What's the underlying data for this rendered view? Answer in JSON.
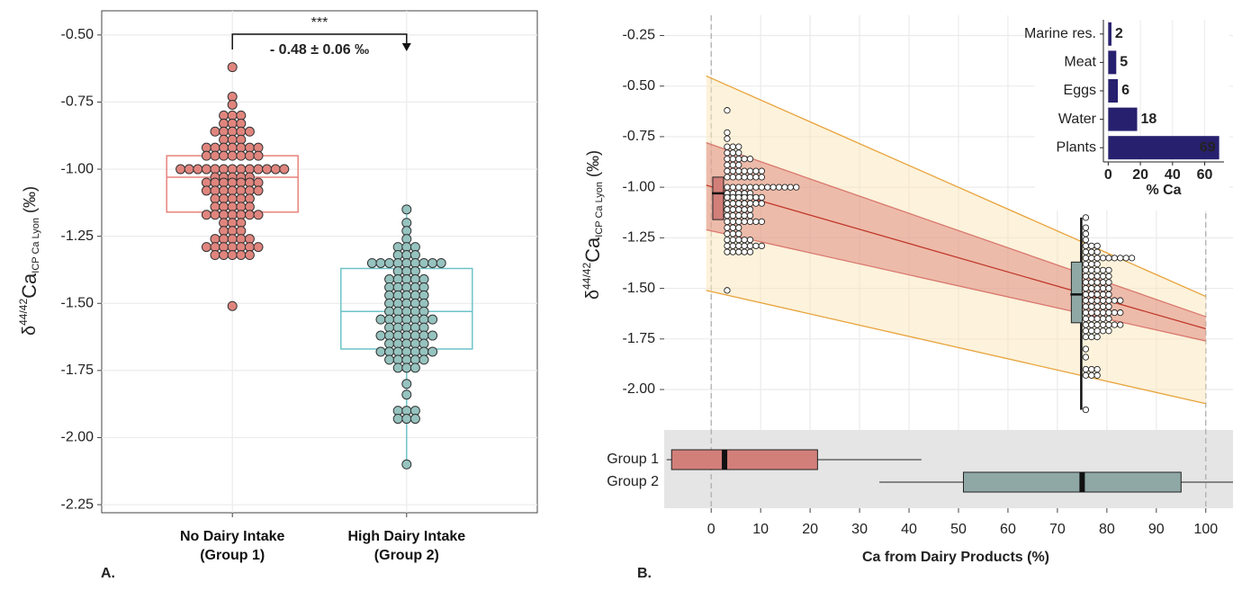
{
  "chart_data": [
    {
      "type": "box",
      "panel_label": "A.",
      "ylabel": [
        "δ",
        "44/42",
        "Ca",
        "ICP Ca Lyon",
        "(‰)"
      ],
      "categories": [
        "No Dairy Intake (Group 1)",
        "High Dairy Intake (Group 2)"
      ],
      "annotation": {
        "stars": "***",
        "text": "- 0.48 ± 0.06 ‰"
      },
      "ylim": [
        -2.28,
        -0.41
      ],
      "yticks": [
        {
          "value": -0.5,
          "label": "-0.50"
        },
        -0.75,
        {
          "value": -1,
          "label": "-1.00"
        },
        -1.25,
        {
          "value": -1.5,
          "label": "-1.50"
        },
        -1.75,
        {
          "value": -2,
          "label": "-2.00"
        },
        -2.25
      ],
      "grid": true,
      "series": [
        {
          "color": "#e0857e",
          "box_color": "#e8837c",
          "box": {
            "q1": -1.16,
            "median": -1.03,
            "q3": -0.95
          },
          "values": [
            -0.62,
            -0.73,
            -0.76,
            -0.8,
            -0.8,
            -0.8,
            -0.83,
            -0.83,
            -0.83,
            -0.86,
            -0.86,
            -0.86,
            -0.86,
            -0.86,
            -0.89,
            -0.89,
            -0.89,
            -0.92,
            -0.92,
            -0.92,
            -0.92,
            -0.92,
            -0.92,
            -0.92,
            -0.95,
            -0.95,
            -0.95,
            -0.95,
            -0.95,
            -0.95,
            -0.95,
            -1,
            -1,
            -1,
            -1,
            -1,
            -1,
            -1,
            -1,
            -1,
            -1,
            -1,
            -1,
            -1,
            -1.03,
            -1.03,
            -1.03,
            -1.03,
            -1.03,
            -1.05,
            -1.05,
            -1.05,
            -1.05,
            -1.05,
            -1.05,
            -1.05,
            -1.08,
            -1.08,
            -1.08,
            -1.08,
            -1.08,
            -1.08,
            -1.08,
            -1.11,
            -1.11,
            -1.11,
            -1.11,
            -1.11,
            -1.14,
            -1.14,
            -1.14,
            -1.14,
            -1.14,
            -1.17,
            -1.17,
            -1.17,
            -1.17,
            -1.17,
            -1.17,
            -1.17,
            -1.2,
            -1.2,
            -1.2,
            -1.23,
            -1.23,
            -1.23,
            -1.26,
            -1.26,
            -1.26,
            -1.26,
            -1.26,
            -1.29,
            -1.29,
            -1.29,
            -1.29,
            -1.29,
            -1.29,
            -1.29,
            -1.32,
            -1.32,
            -1.32,
            -1.32,
            -1.32,
            -1.51
          ]
        },
        {
          "color": "#96c3bf",
          "box_color": "#6ec3c8",
          "box": {
            "q1": -1.67,
            "median": -1.53,
            "q3": -1.37,
            "whiskers": [
              -2.1,
              -1.15
            ]
          },
          "values": [
            -1.15,
            -1.2,
            -1.23,
            -1.26,
            -1.29,
            -1.29,
            -1.29,
            -1.32,
            -1.32,
            -1.32,
            -1.35,
            -1.35,
            -1.35,
            -1.35,
            -1.35,
            -1.35,
            -1.35,
            -1.35,
            -1.35,
            -1.38,
            -1.38,
            -1.38,
            -1.41,
            -1.41,
            -1.41,
            -1.41,
            -1.41,
            -1.44,
            -1.44,
            -1.44,
            -1.44,
            -1.44,
            -1.47,
            -1.47,
            -1.47,
            -1.47,
            -1.47,
            -1.5,
            -1.5,
            -1.5,
            -1.5,
            -1.5,
            -1.53,
            -1.53,
            -1.53,
            -1.53,
            -1.53,
            -1.56,
            -1.56,
            -1.56,
            -1.56,
            -1.56,
            -1.56,
            -1.56,
            -1.59,
            -1.59,
            -1.59,
            -1.59,
            -1.59,
            -1.62,
            -1.62,
            -1.62,
            -1.62,
            -1.62,
            -1.62,
            -1.62,
            -1.65,
            -1.65,
            -1.65,
            -1.65,
            -1.65,
            -1.68,
            -1.68,
            -1.68,
            -1.68,
            -1.68,
            -1.68,
            -1.68,
            -1.71,
            -1.71,
            -1.71,
            -1.71,
            -1.71,
            -1.74,
            -1.74,
            -1.74,
            -1.8,
            -1.84,
            -1.9,
            -1.9,
            -1.9,
            -1.93,
            -1.93,
            -1.93,
            -2.1
          ]
        }
      ]
    },
    {
      "type": "regression",
      "panel_label": "B.",
      "ylabel": [
        "δ",
        "44/42",
        "Ca",
        "ICP Ca Lyon",
        "(‰)"
      ],
      "xlabel": "Ca from Dairy Products (%)",
      "xlim": [
        -9.5,
        105.5
      ],
      "xticks": [
        0,
        10,
        20,
        30,
        40,
        50,
        60,
        70,
        80,
        90,
        100
      ],
      "ylim": [
        -2.2,
        -0.15
      ],
      "yticks": [
        -0.25,
        {
          "value": -0.5,
          "label": "-0.50"
        },
        -0.75,
        {
          "value": -1,
          "label": "-1.00"
        },
        -1.25,
        {
          "value": -1.5,
          "label": "-1.50"
        },
        -1.75,
        {
          "value": -2,
          "label": "-2.00"
        }
      ],
      "fit": {
        "x": [
          -1,
          100
        ],
        "y": [
          -0.99,
          -1.7
        ],
        "color": "#c0392b"
      },
      "confidence": {
        "lower": [
          -1.21,
          -1.76
        ],
        "upper": [
          -0.78,
          -1.64
        ],
        "color": "#d9786e"
      },
      "prediction": {
        "lower": [
          -1.51,
          -2.07
        ],
        "upper": [
          -0.45,
          -1.54
        ],
        "color": "#e8a33a"
      },
      "groups_x": [
        2.5,
        75
      ],
      "box_groups": [
        {
          "name": "Group 1",
          "color": "#d27f7a",
          "whisker_low": -9,
          "q1": -8,
          "median": 2.7,
          "q3": 21.5,
          "whisker_high": 42.5
        },
        {
          "name": "Group 2",
          "color": "#8fa8a5",
          "whisker_low": 34,
          "q1": 51,
          "median": 75,
          "q3": 95,
          "whisker_high": 106
        }
      ]
    },
    {
      "type": "bar",
      "orientation": "horizontal",
      "xlabel": "% Ca",
      "color": "#27206e",
      "categories": [
        "Marine res.",
        "Meat",
        "Eggs",
        "Water",
        "Plants"
      ],
      "values": [
        2,
        5,
        6,
        18,
        69
      ],
      "xlim": [
        -3,
        72
      ],
      "xticks": [
        0,
        20,
        40,
        60
      ]
    }
  ]
}
